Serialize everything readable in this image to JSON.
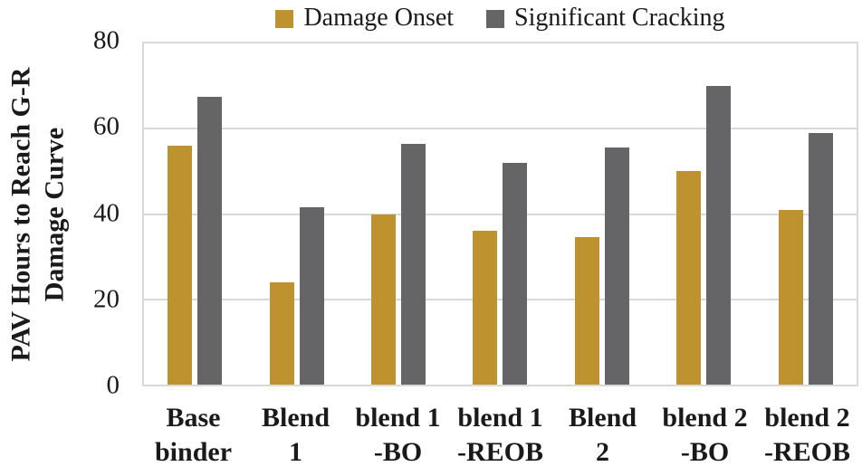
{
  "figure": {
    "background": "#ffffff",
    "text_color": "#1a1a1a",
    "gridline_color": "#d9d9d9"
  },
  "legend": [
    {
      "label": "Damage Onset",
      "color": "#bf9230",
      "swatch": "square"
    },
    {
      "label": "Significant Cracking",
      "color": "#656568",
      "swatch": "square"
    }
  ],
  "chart_data": {
    "type": "bar",
    "title": "",
    "xlabel": "",
    "ylabel": "PAV Hours to Reach G-R\nDamage Curve",
    "ylim": [
      0,
      80
    ],
    "yticks": [
      0,
      20,
      40,
      60,
      80
    ],
    "grid": true,
    "legend_position": "top-center",
    "categories": [
      "Base\nbinder",
      "Blend\n1",
      "blend 1\n-BO",
      "blend 1\n-REOB",
      "Blend\n2",
      "blend 2\n-BO",
      "blend 2\n-REOB"
    ],
    "series": [
      {
        "name": "Damage Onset",
        "color": "#bf9230",
        "values": [
          56,
          24,
          40,
          36,
          34.5,
          50,
          41
        ]
      },
      {
        "name": "Significant Cracking",
        "color": "#656568",
        "values": [
          67.5,
          41.5,
          56.5,
          52,
          55.5,
          70,
          59
        ]
      }
    ]
  }
}
